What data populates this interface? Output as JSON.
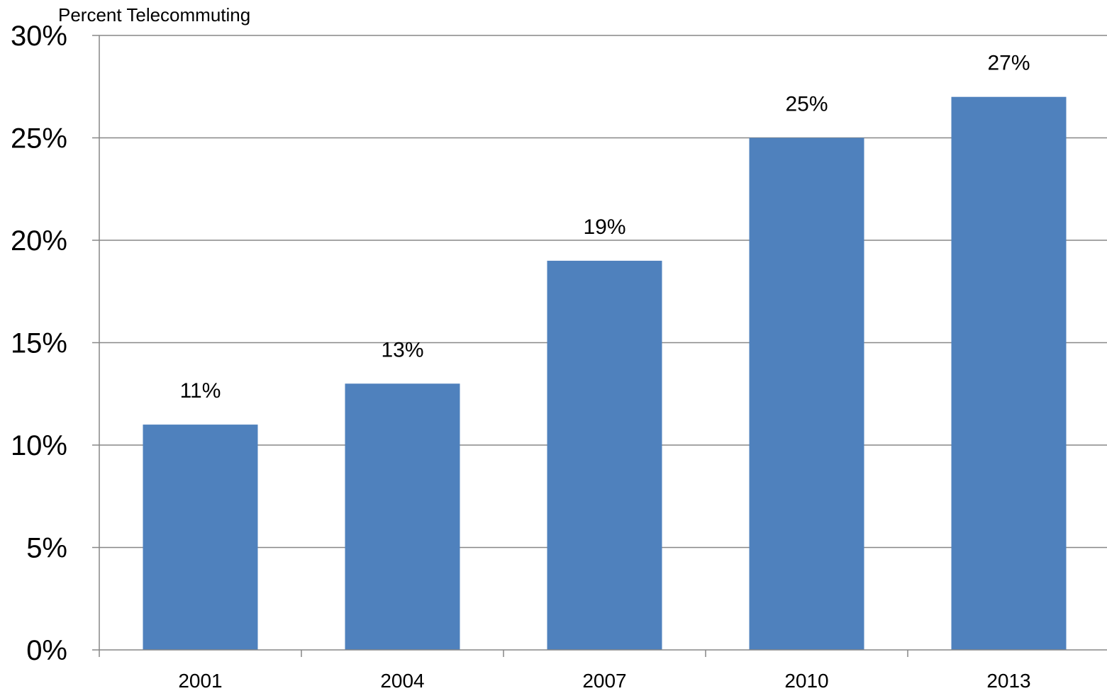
{
  "chart_data": {
    "type": "bar",
    "title": "Percent Telecommuting",
    "xlabel": "",
    "ylabel": "",
    "categories": [
      "2001",
      "2004",
      "2007",
      "2010",
      "2013"
    ],
    "values": [
      11,
      13,
      19,
      25,
      27
    ],
    "data_labels": [
      "11%",
      "13%",
      "19%",
      "25%",
      "27%"
    ],
    "y_ticks": [
      0,
      5,
      10,
      15,
      20,
      25,
      30
    ],
    "y_tick_labels": [
      "0%",
      "5%",
      "10%",
      "15%",
      "20%",
      "25%",
      "30%"
    ],
    "ylim": [
      0,
      30
    ],
    "grid": true,
    "legend": "none",
    "colors": {
      "bar": "#4f81bd",
      "grid": "#878787",
      "axis": "#878787"
    }
  }
}
